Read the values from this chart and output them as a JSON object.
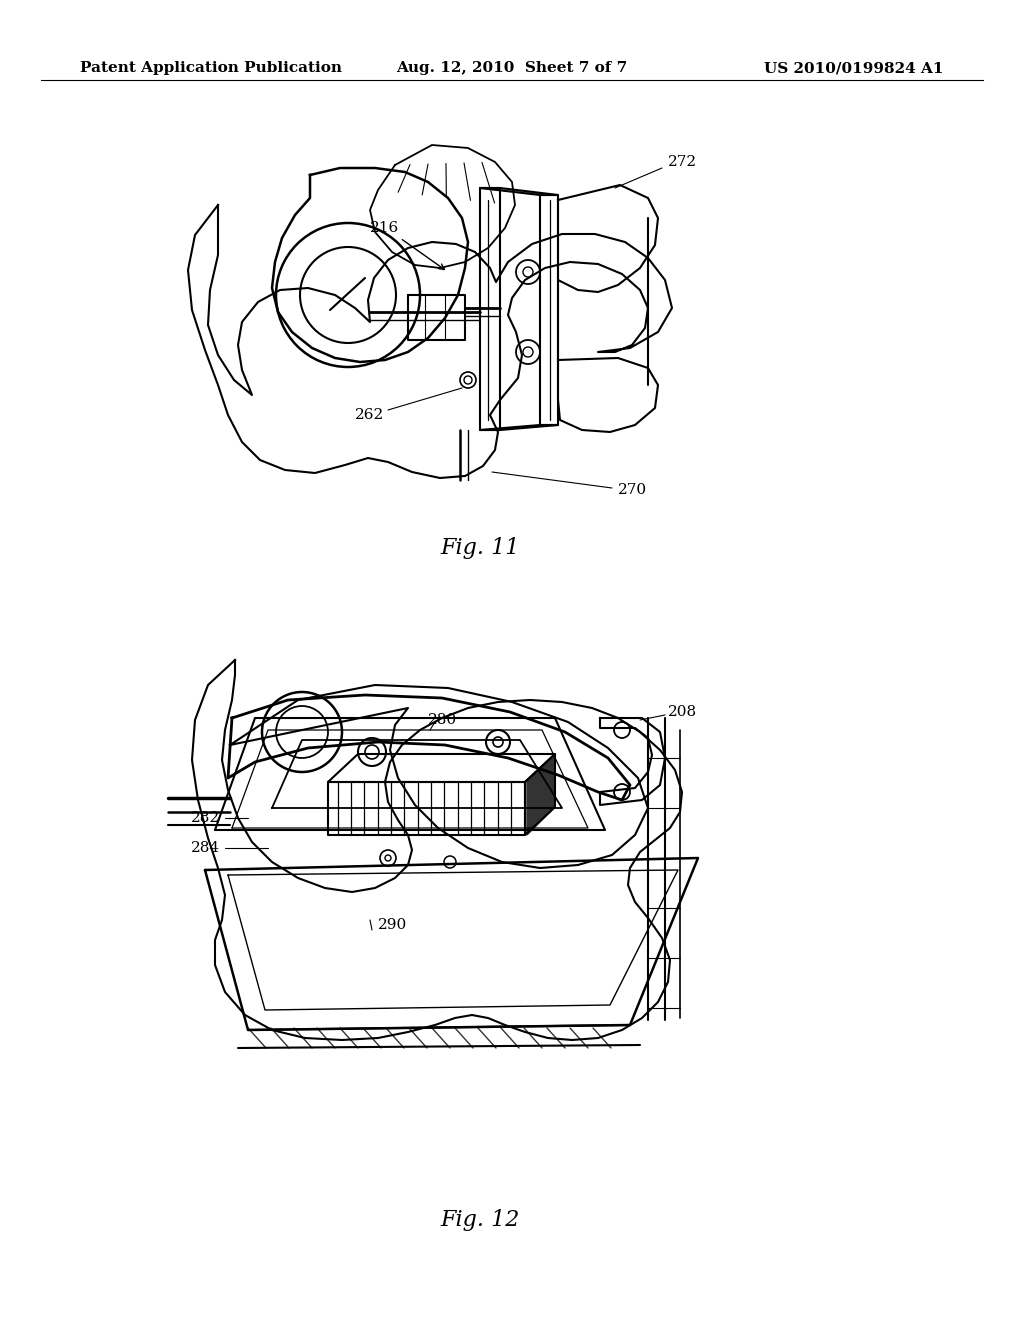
{
  "background_color": "#ffffff",
  "header_left": "Patent Application Publication",
  "header_center": "Aug. 12, 2010  Sheet 7 of 7",
  "header_right": "US 2010/0199824 A1",
  "header_fontsize": 11,
  "fig11_caption": "Fig. 11",
  "fig12_caption": "Fig. 12",
  "caption_fontsize": 16,
  "label_fontsize": 11,
  "line_color": "#000000"
}
